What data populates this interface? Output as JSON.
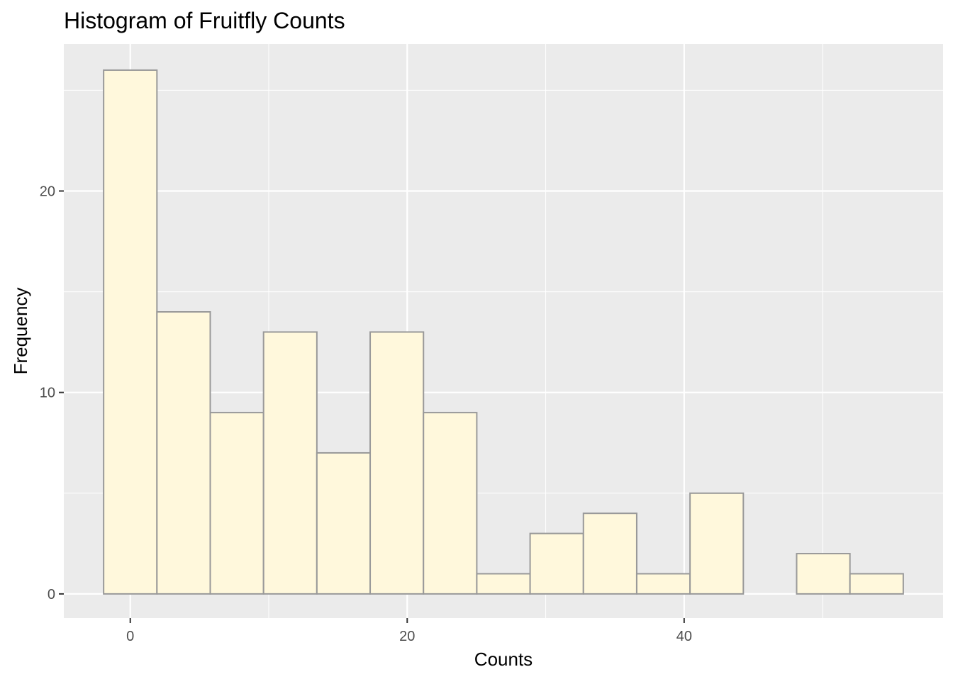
{
  "chart_data": {
    "type": "bar",
    "title": "Histogram of Fruitfly Counts",
    "xlabel": "Counts",
    "ylabel": "Frequency",
    "bin_width": 3.85,
    "bins": [
      {
        "start": -1.925,
        "end": 1.925,
        "count": 26
      },
      {
        "start": 1.925,
        "end": 5.775,
        "count": 14
      },
      {
        "start": 5.775,
        "end": 9.625,
        "count": 9
      },
      {
        "start": 9.625,
        "end": 13.475,
        "count": 13
      },
      {
        "start": 13.475,
        "end": 17.325,
        "count": 7
      },
      {
        "start": 17.325,
        "end": 21.175,
        "count": 13
      },
      {
        "start": 21.175,
        "end": 25.025,
        "count": 9
      },
      {
        "start": 25.025,
        "end": 28.875,
        "count": 1
      },
      {
        "start": 28.875,
        "end": 32.725,
        "count": 3
      },
      {
        "start": 32.725,
        "end": 36.575,
        "count": 4
      },
      {
        "start": 36.575,
        "end": 40.425,
        "count": 1
      },
      {
        "start": 40.425,
        "end": 44.275,
        "count": 5
      },
      {
        "start": 44.275,
        "end": 48.125,
        "count": 0
      },
      {
        "start": 48.125,
        "end": 51.975,
        "count": 2
      },
      {
        "start": 51.975,
        "end": 55.825,
        "count": 1
      }
    ],
    "xlim": [
      -4.8,
      58.7
    ],
    "ylim": [
      -1.2,
      27.3
    ],
    "x_ticks": [
      0,
      20,
      40
    ],
    "x_tick_labels": [
      "0",
      "20",
      "40"
    ],
    "y_ticks": [
      0,
      10,
      20
    ],
    "y_tick_labels": [
      "0",
      "10",
      "20"
    ],
    "x_minor_gridlines": [
      10,
      30,
      50
    ],
    "y_minor_gridlines": [
      5,
      15,
      25
    ],
    "grid": true,
    "legend": "none"
  },
  "colors": {
    "panel_background": "#ebebeb",
    "gridline": "#ffffff",
    "bar_fill": "#fff8dc",
    "bar_outline": "#999999",
    "tick_mark": "#333333",
    "tick_label": "#4d4d4d",
    "text": "#000000"
  }
}
